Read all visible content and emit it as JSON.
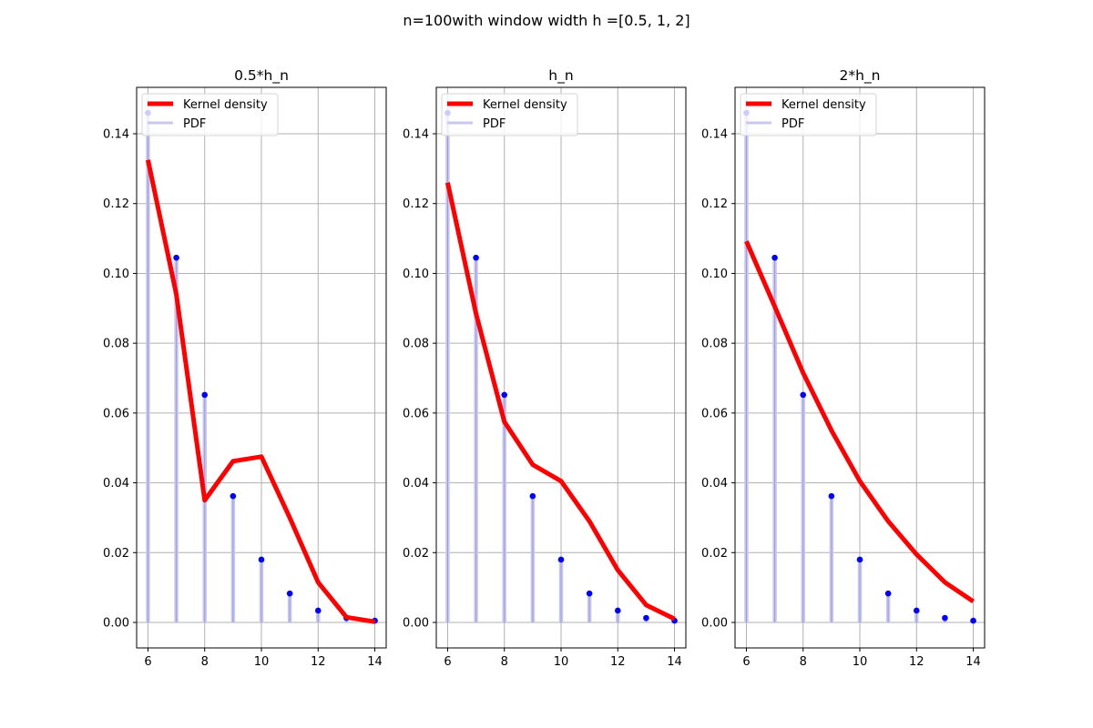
{
  "figure": {
    "suptitle": "n=100with window width h =[0.5, 1, 2]"
  },
  "colors": {
    "kde": "#ff0000",
    "pdf_line": "#c8c8f0",
    "pdf_stem": "#9a9ae6",
    "pdf_marker": "#0000ff",
    "grid": "#b0b0b0",
    "axes": "#000000"
  },
  "chart_data": [
    {
      "type": "line",
      "title": "0.5*h_n",
      "xlim": [
        5.6,
        14.4
      ],
      "ylim": [
        -0.0073,
        0.1533
      ],
      "xticks": [
        6,
        8,
        10,
        12,
        14
      ],
      "yticks": [
        0.0,
        0.02,
        0.04,
        0.06,
        0.08,
        0.1,
        0.12,
        0.14
      ],
      "ytick_labels": [
        "0.00",
        "0.02",
        "0.04",
        "0.06",
        "0.08",
        "0.10",
        "0.12",
        "0.14"
      ],
      "legend": {
        "placement": "upper-left",
        "entries": [
          "Kernel density",
          "PDF"
        ]
      },
      "grid": true,
      "series": [
        {
          "name": "Kernel density",
          "x": [
            6,
            7,
            8,
            9,
            10,
            11,
            12,
            13,
            14
          ],
          "y": [
            0.1325,
            0.094,
            0.035,
            0.0462,
            0.0475,
            0.03,
            0.0115,
            0.0015,
            0.0002
          ]
        },
        {
          "name": "PDF",
          "x": [
            6,
            7,
            8,
            9,
            10,
            11,
            12,
            13,
            14
          ],
          "y": [
            0.146,
            0.1045,
            0.0652,
            0.0362,
            0.018,
            0.0083,
            0.0034,
            0.0013,
            0.0005
          ]
        }
      ]
    },
    {
      "type": "line",
      "title": "h_n",
      "xlim": [
        5.6,
        14.4
      ],
      "ylim": [
        -0.0073,
        0.1533
      ],
      "xticks": [
        6,
        8,
        10,
        12,
        14
      ],
      "yticks": [
        0.0,
        0.02,
        0.04,
        0.06,
        0.08,
        0.1,
        0.12,
        0.14
      ],
      "ytick_labels": [
        "0.00",
        "0.02",
        "0.04",
        "0.06",
        "0.08",
        "0.10",
        "0.12",
        "0.14"
      ],
      "legend": {
        "placement": "upper-left",
        "entries": [
          "Kernel density",
          "PDF"
        ]
      },
      "grid": true,
      "series": [
        {
          "name": "Kernel density",
          "x": [
            6,
            7,
            8,
            9,
            10,
            11,
            12,
            13,
            14
          ],
          "y": [
            0.126,
            0.0885,
            0.0575,
            0.0452,
            0.0405,
            0.029,
            0.015,
            0.005,
            0.001
          ]
        },
        {
          "name": "PDF",
          "x": [
            6,
            7,
            8,
            9,
            10,
            11,
            12,
            13,
            14
          ],
          "y": [
            0.146,
            0.1045,
            0.0652,
            0.0362,
            0.018,
            0.0083,
            0.0034,
            0.0013,
            0.0005
          ]
        }
      ]
    },
    {
      "type": "line",
      "title": "2*h_n",
      "xlim": [
        5.6,
        14.4
      ],
      "ylim": [
        -0.0073,
        0.1533
      ],
      "xticks": [
        6,
        8,
        10,
        12,
        14
      ],
      "yticks": [
        0.0,
        0.02,
        0.04,
        0.06,
        0.08,
        0.1,
        0.12,
        0.14
      ],
      "ytick_labels": [
        "0.00",
        "0.02",
        "0.04",
        "0.06",
        "0.08",
        "0.10",
        "0.12",
        "0.14"
      ],
      "legend": {
        "placement": "upper-left",
        "entries": [
          "Kernel density",
          "PDF"
        ]
      },
      "grid": true,
      "series": [
        {
          "name": "Kernel density",
          "x": [
            6,
            7,
            8,
            9,
            10,
            11,
            12,
            13,
            14
          ],
          "y": [
            0.1092,
            0.0905,
            0.0715,
            0.055,
            0.0405,
            0.029,
            0.0195,
            0.0115,
            0.006
          ]
        },
        {
          "name": "PDF",
          "x": [
            6,
            7,
            8,
            9,
            10,
            11,
            12,
            13,
            14
          ],
          "y": [
            0.146,
            0.1045,
            0.0652,
            0.0362,
            0.018,
            0.0083,
            0.0034,
            0.0013,
            0.0005
          ]
        }
      ]
    }
  ]
}
